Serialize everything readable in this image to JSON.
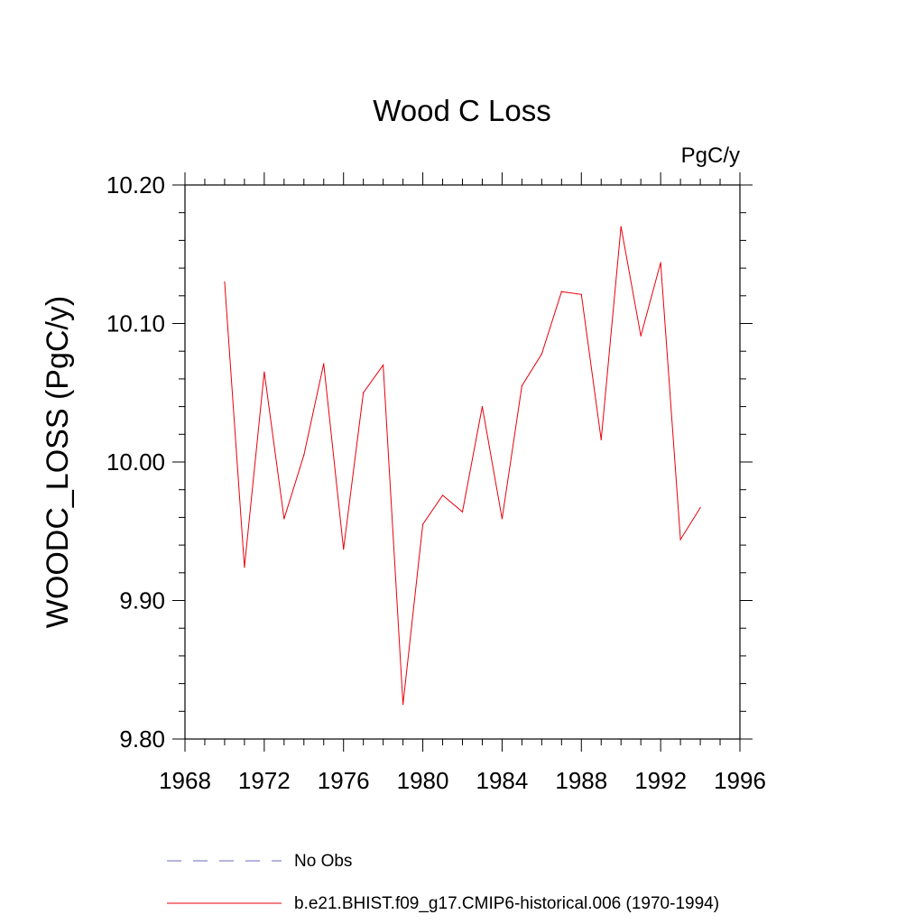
{
  "chart_data": {
    "type": "line",
    "title": "Wood C Loss",
    "units_label": "PgC/y",
    "xlabel": "",
    "ylabel": "WOODC_LOSS  (PgC/y)",
    "xlim": [
      1968,
      1996
    ],
    "ylim": [
      9.8,
      10.2
    ],
    "x_ticks": [
      1968,
      1972,
      1976,
      1980,
      1984,
      1988,
      1992,
      1996
    ],
    "y_ticks": [
      "9.80",
      "9.90",
      "10.00",
      "10.10",
      "10.20"
    ],
    "series": [
      {
        "name": "b.e21.BHIST.f09_g17.CMIP6-historical.006 (1970-1994)",
        "color": "#e8000b",
        "x": [
          1970,
          1971,
          1972,
          1973,
          1974,
          1975,
          1976,
          1977,
          1978,
          1979,
          1980,
          1981,
          1982,
          1983,
          1984,
          1985,
          1986,
          1987,
          1988,
          1989,
          1990,
          1991,
          1992,
          1993,
          1994
        ],
        "values": [
          10.13,
          9.924,
          10.065,
          9.959,
          10.005,
          10.071,
          9.937,
          10.05,
          10.07,
          9.825,
          9.955,
          9.976,
          9.964,
          10.04,
          9.959,
          10.055,
          10.078,
          10.123,
          10.121,
          10.016,
          10.17,
          10.091,
          10.144,
          9.944,
          9.967
        ]
      }
    ],
    "legend": [
      {
        "label": "No Obs",
        "style": "dashed",
        "color": "#6a6ab8"
      },
      {
        "label": "b.e21.BHIST.f09_g17.CMIP6-historical.006 (1970-1994)",
        "style": "solid",
        "color": "#e8000b"
      }
    ]
  }
}
